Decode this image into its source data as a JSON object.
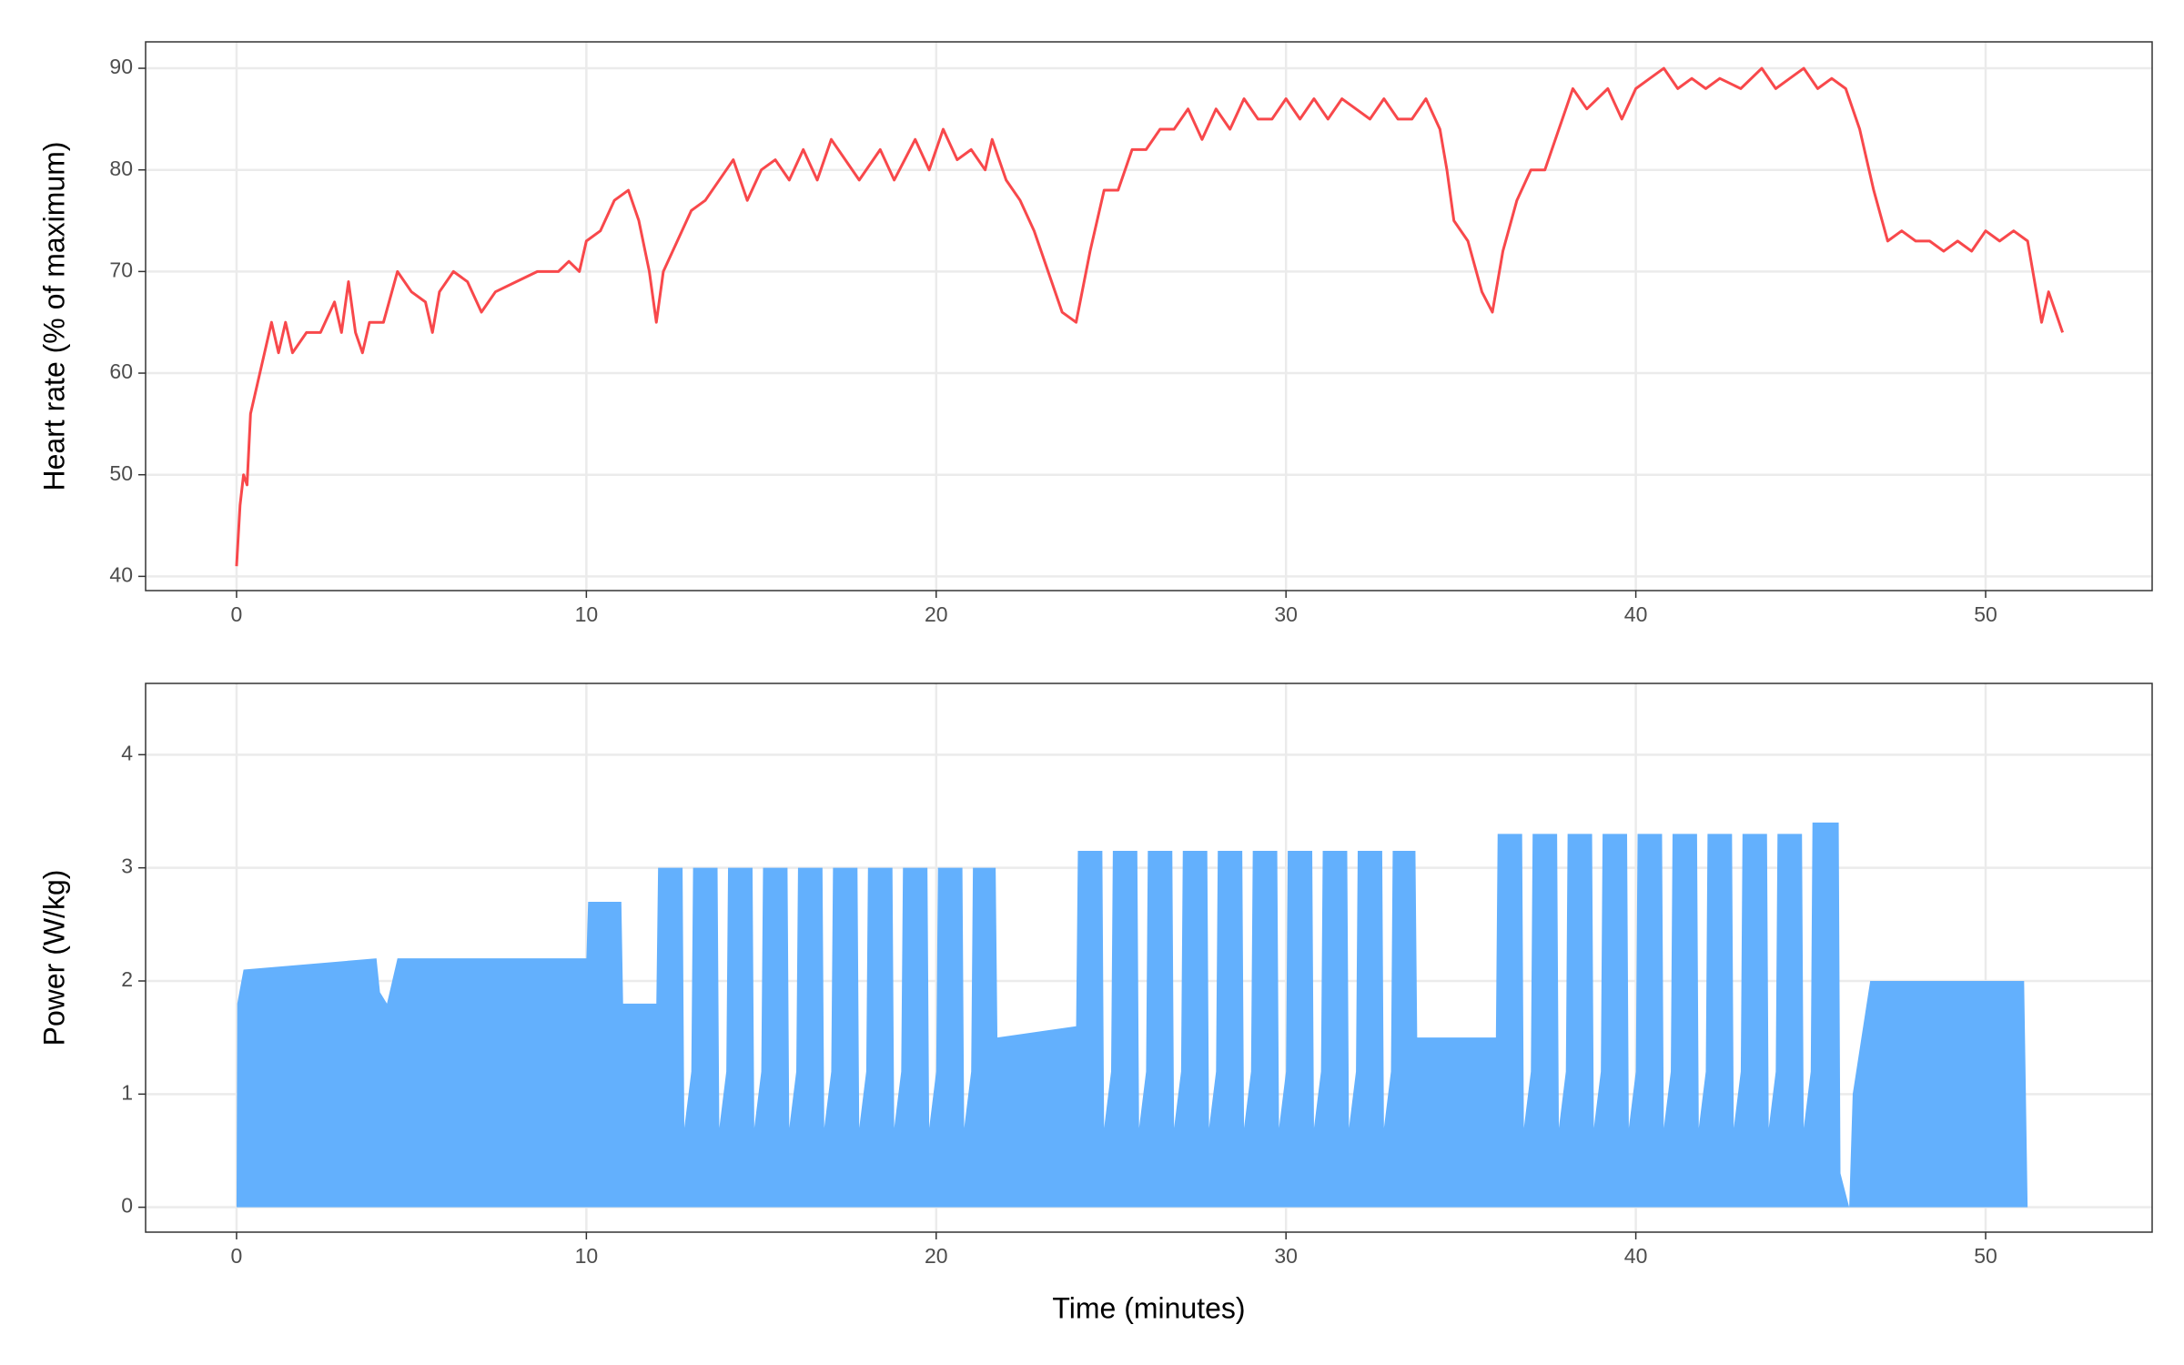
{
  "chart_data": [
    {
      "type": "line",
      "ylabel": "Heart rate (% of maximum)",
      "color": "#f8484b",
      "x": [
        0,
        0.1,
        0.2,
        0.3,
        0.4,
        0.6,
        0.8,
        1,
        1.2,
        1.4,
        1.6,
        2,
        2.4,
        2.8,
        3,
        3.2,
        3.4,
        3.6,
        3.8,
        4.2,
        4.6,
        5,
        5.4,
        5.6,
        5.8,
        6.2,
        6.6,
        7,
        7.4,
        8,
        8.6,
        9.2,
        9.5,
        9.8,
        10,
        10.4,
        10.8,
        11.2,
        11.5,
        11.8,
        12,
        12.2,
        12.6,
        13,
        13.4,
        14,
        14.2,
        14.6,
        15,
        15.4,
        15.8,
        16.2,
        16.6,
        17,
        17.4,
        17.8,
        18.4,
        18.8,
        19.4,
        19.8,
        20.2,
        20.6,
        21,
        21.4,
        21.6,
        22,
        22.4,
        22.8,
        23.2,
        23.6,
        24,
        24.4,
        24.8,
        25.2,
        25.6,
        26,
        26.4,
        26.8,
        27.2,
        27.6,
        28,
        28.4,
        28.8,
        29.2,
        29.6,
        30,
        30.4,
        30.8,
        31.2,
        31.6,
        32,
        32.4,
        32.8,
        33.2,
        33.6,
        34,
        34.4,
        34.6,
        34.8,
        35.2,
        35.6,
        35.9,
        36.2,
        36.6,
        37,
        37.4,
        37.8,
        38.2,
        38.6,
        39.2,
        39.6,
        40,
        40.4,
        40.8,
        41.2,
        41.6,
        42,
        42.4,
        43,
        43.6,
        44,
        44.4,
        44.8,
        45.2,
        45.6,
        46,
        46.4,
        46.8,
        47.2,
        47.6,
        48,
        48.4,
        48.8,
        49.2,
        49.6,
        50,
        50.4,
        50.8,
        51.2,
        51.6,
        51.8,
        52,
        52.2
      ],
      "values": [
        41,
        47,
        50,
        49,
        56,
        59,
        62,
        65,
        62,
        65,
        62,
        64,
        64,
        67,
        64,
        69,
        64,
        62,
        65,
        65,
        70,
        68,
        67,
        64,
        68,
        70,
        69,
        66,
        68,
        69,
        70,
        70,
        71,
        70,
        73,
        74,
        77,
        78,
        75,
        70,
        65,
        70,
        73,
        76,
        77,
        80,
        81,
        77,
        80,
        81,
        79,
        82,
        79,
        83,
        81,
        79,
        82,
        79,
        83,
        80,
        84,
        81,
        82,
        80,
        83,
        79,
        77,
        74,
        70,
        66,
        65,
        72,
        78,
        78,
        82,
        82,
        84,
        84,
        86,
        83,
        86,
        84,
        87,
        85,
        85,
        87,
        85,
        87,
        85,
        87,
        86,
        85,
        87,
        85,
        85,
        87,
        84,
        80,
        75,
        73,
        68,
        66,
        72,
        77,
        80,
        80,
        84,
        88,
        86,
        88,
        85,
        88,
        89,
        90,
        88,
        89,
        88,
        89,
        88,
        90,
        88,
        89,
        90,
        88,
        89,
        88,
        84,
        78,
        73,
        74,
        73,
        73,
        72,
        73,
        72,
        74,
        73,
        74,
        73,
        65,
        68,
        66,
        64
      ],
      "xlim": [
        -2.6,
        54.76
      ],
      "xticks": [
        0,
        10,
        20,
        30,
        40,
        50
      ],
      "ylim": [
        38.6,
        92.6
      ],
      "yticks": [
        40,
        50,
        60,
        70,
        80,
        90
      ],
      "grid": true
    },
    {
      "type": "area",
      "xlabel": "Time (minutes)",
      "ylabel": "Power (W/kg)",
      "color": "#63b0fd",
      "x": [
        0,
        0.02,
        0.2,
        4,
        4.1,
        4.3,
        4.6,
        10,
        10.05,
        11,
        11.05,
        12,
        12.05,
        12.75,
        12.8,
        13,
        13.05,
        13.75,
        13.8,
        14,
        14.05,
        14.75,
        14.8,
        15,
        15.05,
        15.75,
        15.8,
        16,
        16.05,
        16.75,
        16.8,
        17,
        17.05,
        17.75,
        17.8,
        18,
        18.05,
        18.75,
        18.8,
        19,
        19.05,
        19.75,
        19.8,
        20,
        20.05,
        20.75,
        20.8,
        21,
        21.05,
        21.7,
        21.75,
        24,
        24.05,
        24.75,
        24.8,
        25,
        25.05,
        25.75,
        25.8,
        26,
        26.05,
        26.75,
        26.8,
        27,
        27.05,
        27.75,
        27.8,
        28,
        28.05,
        28.75,
        28.8,
        29,
        29.05,
        29.75,
        29.8,
        30,
        30.05,
        30.75,
        30.8,
        31,
        31.05,
        31.75,
        31.8,
        32,
        32.05,
        32.75,
        32.8,
        33,
        33.05,
        33.7,
        33.75,
        36,
        36.05,
        36.75,
        36.8,
        37,
        37.05,
        37.75,
        37.8,
        38,
        38.05,
        38.75,
        38.8,
        39,
        39.05,
        39.75,
        39.8,
        40,
        40.05,
        40.75,
        40.8,
        41,
        41.05,
        41.75,
        41.8,
        42,
        42.05,
        42.75,
        42.8,
        43,
        43.05,
        43.75,
        43.8,
        44,
        44.05,
        44.75,
        44.8,
        45,
        45.05,
        45.8,
        45.85,
        46.1,
        46.2,
        46.7,
        51.1,
        51.2
      ],
      "values": [
        0,
        1.8,
        2.1,
        2.2,
        1.9,
        1.8,
        2.2,
        2.2,
        2.7,
        2.7,
        1.8,
        1.8,
        3,
        3,
        0.7,
        1.2,
        3,
        3,
        0.7,
        1.2,
        3,
        3,
        0.7,
        1.2,
        3,
        3,
        0.7,
        1.2,
        3,
        3,
        0.7,
        1.2,
        3,
        3,
        0.7,
        1.2,
        3,
        3,
        0.7,
        1.2,
        3,
        3,
        0.7,
        1.2,
        3,
        3,
        0.7,
        1.2,
        3,
        3,
        1.5,
        1.6,
        3.15,
        3.15,
        0.7,
        1.2,
        3.15,
        3.15,
        0.7,
        1.2,
        3.15,
        3.15,
        0.7,
        1.2,
        3.15,
        3.15,
        0.7,
        1.2,
        3.15,
        3.15,
        0.7,
        1.2,
        3.15,
        3.15,
        0.7,
        1.2,
        3.15,
        3.15,
        0.7,
        1.2,
        3.15,
        3.15,
        0.7,
        1.2,
        3.15,
        3.15,
        0.7,
        1.2,
        3.15,
        3.15,
        1.5,
        1.5,
        3.3,
        3.3,
        0.7,
        1.2,
        3.3,
        3.3,
        0.7,
        1.2,
        3.3,
        3.3,
        0.7,
        1.2,
        3.3,
        3.3,
        0.7,
        1.2,
        3.3,
        3.3,
        0.7,
        1.2,
        3.3,
        3.3,
        0.7,
        1.2,
        3.3,
        3.3,
        0.7,
        1.2,
        3.3,
        3.3,
        0.7,
        1.2,
        3.3,
        3.3,
        0.7,
        1.2,
        3.4,
        3.4,
        0.3,
        0,
        1,
        2,
        2,
        0
      ],
      "xlim": [
        -2.6,
        54.76
      ],
      "xticks": [
        0,
        10,
        20,
        30,
        40,
        50
      ],
      "ylim": [
        -0.22,
        4.63
      ],
      "yticks": [
        0,
        1,
        2,
        3,
        4
      ],
      "grid": true
    }
  ]
}
